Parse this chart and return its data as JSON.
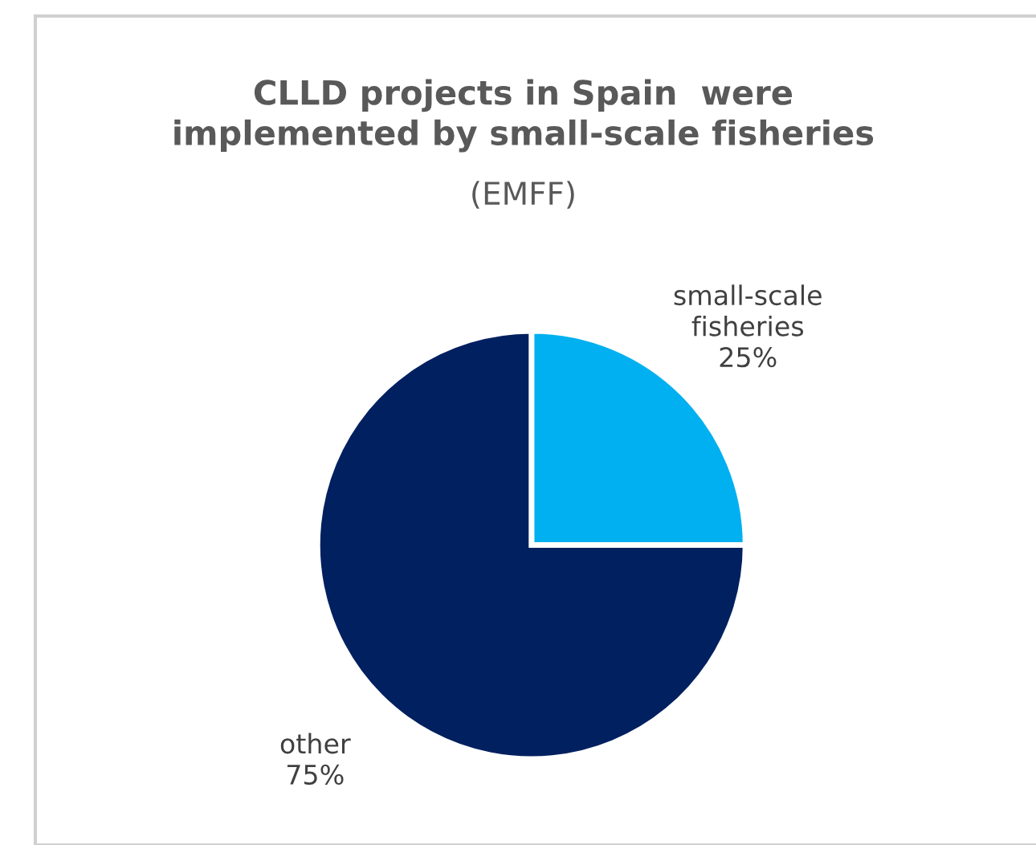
{
  "chart_data": {
    "type": "pie",
    "title": "CLLD projects in Spain  were\nimplemented by small-scale fisheries",
    "subtitle": "(EMFF)",
    "categories": [
      "small-scale\nfisheries",
      "other"
    ],
    "values": [
      25,
      75
    ],
    "colors": [
      "#00b0f0",
      "#002060"
    ],
    "value_labels": [
      "25%",
      "75%"
    ],
    "legend": false
  }
}
